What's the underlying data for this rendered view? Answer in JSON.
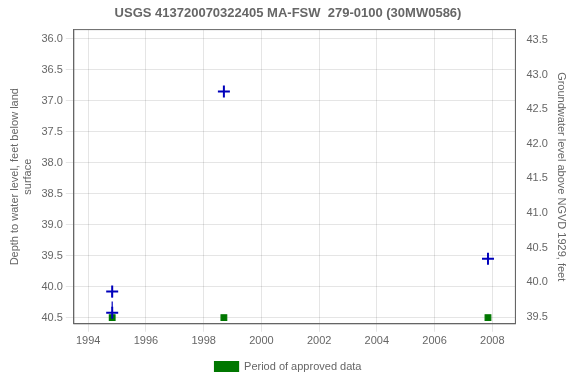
{
  "chart_data": {
    "type": "scatter",
    "title": "USGS 413720070322405 MA-FSW  279-0100 (30MW0586)",
    "ylabel": "Depth to water level, feet below land\nsurface",
    "y2label": "Groundwater level above NGVD 1929, feet",
    "xlim": [
      1993.5,
      2008.8
    ],
    "xticks": [
      1994,
      1996,
      1998,
      2000,
      2002,
      2004,
      2006,
      2008
    ],
    "ylim": [
      40.6,
      35.85
    ],
    "yticks": [
      {
        "value": 36,
        "label": "36.0"
      },
      36.5,
      {
        "value": 37,
        "label": "37.0"
      },
      37.5,
      {
        "value": 38,
        "label": "38.0"
      },
      38.5,
      {
        "value": 39,
        "label": "39.0"
      },
      39.5,
      {
        "value": 40,
        "label": "40.0"
      },
      40.5
    ],
    "y2lim": [
      39.4,
      43.65
    ],
    "y2ticks": [
      43.5,
      {
        "value": 43,
        "label": "43.0"
      },
      42.5,
      {
        "value": 42,
        "label": "42.0"
      },
      41.5,
      {
        "value": 41,
        "label": "41.0"
      },
      40.5,
      {
        "value": 40,
        "label": "40.0"
      },
      39.5
    ],
    "grid": true,
    "legend": "bottom",
    "series": [
      {
        "type": "scatter",
        "marker": "plus",
        "color": "#0000bb",
        "x": [
          1994.83,
          1994.83,
          1998.7,
          2007.85
        ],
        "values": [
          40.08,
          40.42,
          36.85,
          39.55
        ]
      },
      {
        "type": "line",
        "line_style": "dashed",
        "color": "#0000bb",
        "x": [
          1994.83,
          1994.83
        ],
        "values": [
          40.08,
          40.42
        ]
      },
      {
        "type": "scatter",
        "marker": "square",
        "name": "Period of approved data",
        "color": "#007700",
        "x": [
          1994.83,
          1998.7,
          2007.85
        ],
        "values": [
          40.5,
          40.5,
          40.5
        ]
      }
    ]
  }
}
